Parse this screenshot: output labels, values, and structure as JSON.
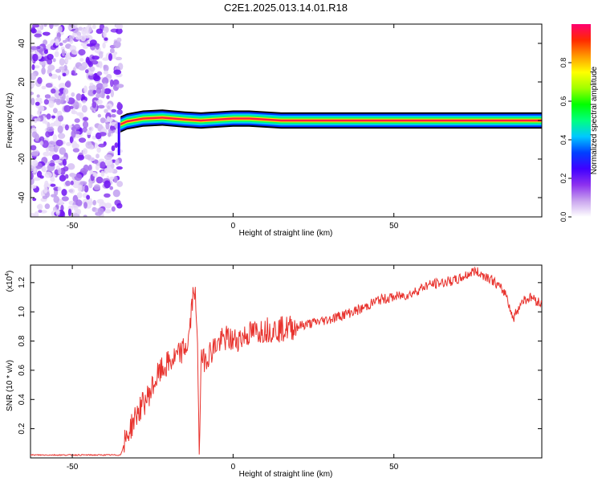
{
  "title": "C2E1.2025.013.14.01.R18",
  "chart_data": [
    {
      "type": "heatmap",
      "xlabel": "Height of straight line (km)",
      "ylabel": "Frequency (Hz)",
      "xlim": [
        -63,
        96
      ],
      "ylim": [
        -50,
        50
      ],
      "x_ticks": [
        -50,
        0,
        50
      ],
      "y_ticks": [
        -40,
        -20,
        0,
        20,
        40
      ],
      "colorbar": {
        "label": "Normalized spectral amplitude",
        "range": [
          0,
          1
        ],
        "ticks": [
          "0.0",
          "0.2",
          "0.4",
          "0.6",
          "0.8"
        ],
        "colormap": [
          "#ffffff",
          "#c9a4ee",
          "#8d31ef",
          "#3f00ff",
          "#0040ff",
          "#00c8ff",
          "#00ff80",
          "#00ff00",
          "#a0ff00",
          "#ffff00",
          "#ff9a00",
          "#ff2a00",
          "#ff0070"
        ]
      },
      "noise_region_x": [
        -63,
        -35
      ],
      "signal_track": [
        {
          "x": -35,
          "freq": -2
        },
        {
          "x": -33,
          "freq": -0.5
        },
        {
          "x": -28,
          "freq": 1
        },
        {
          "x": -22,
          "freq": 1.5
        },
        {
          "x": -15,
          "freq": 0.5
        },
        {
          "x": -10,
          "freq": 0
        },
        {
          "x": 0,
          "freq": 1
        },
        {
          "x": 5,
          "freq": 1
        },
        {
          "x": 15,
          "freq": 0
        },
        {
          "x": 96,
          "freq": 0
        }
      ],
      "grid": false
    },
    {
      "type": "line",
      "xlabel": "Height of straight line (km)",
      "ylabel": "SNR (10 * v/v)",
      "scale_label": "(x10",
      "scale_exponent": "4",
      "xlim": [
        -63,
        96
      ],
      "ylim": [
        0.0,
        1.32
      ],
      "x_ticks": [
        -50,
        0,
        50
      ],
      "y_ticks": [
        "0.2",
        "0.4",
        "0.6",
        "0.8",
        "1.0",
        "1.2"
      ],
      "series": [
        {
          "color": "#e8332e",
          "x": [
            -63,
            -50,
            -40,
            -35,
            -33,
            -30,
            -27,
            -23,
            -20,
            -17,
            -14,
            -12,
            -11,
            -10.5,
            -10,
            -8,
            -5,
            -2,
            0,
            5,
            10,
            15,
            20,
            30,
            40,
            45,
            50,
            55,
            60,
            65,
            70,
            75,
            80,
            85,
            87,
            90,
            93,
            96
          ],
          "y": [
            0.02,
            0.02,
            0.02,
            0.02,
            0.15,
            0.3,
            0.4,
            0.58,
            0.65,
            0.7,
            0.78,
            1.2,
            0.7,
            0.03,
            0.65,
            0.7,
            0.78,
            0.82,
            0.8,
            0.85,
            0.88,
            0.88,
            0.9,
            0.95,
            1.02,
            1.08,
            1.1,
            1.12,
            1.18,
            1.2,
            1.22,
            1.28,
            1.23,
            1.12,
            0.95,
            1.08,
            1.1,
            1.05
          ]
        }
      ],
      "grid": false
    }
  ]
}
